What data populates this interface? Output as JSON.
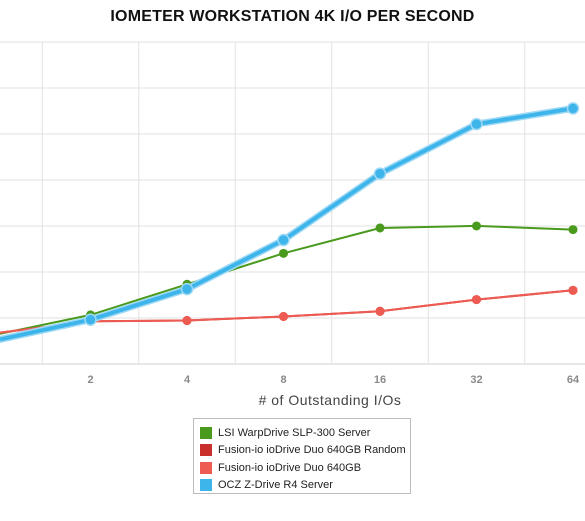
{
  "chart_data": {
    "type": "line",
    "title": "IOMETER WORKSTATION 4K I/O PER SECOND",
    "xlabel": "# of Outstanding I/Os",
    "ylabel": "",
    "x_scale": "log2",
    "x": [
      1,
      2,
      4,
      8,
      16,
      32,
      64
    ],
    "x_tick_labels": [
      "",
      "2",
      "4",
      "8",
      "16",
      "32",
      "64"
    ],
    "ylim": [
      0,
      8
    ],
    "grid": true,
    "legend_position": "bottom",
    "series": [
      {
        "name": "LSI WarpDrive SLP-300 Server",
        "color": "#4a9a1e",
        "values": [
          0.72,
          1.22,
          1.98,
          2.75,
          3.38,
          3.43,
          3.34
        ]
      },
      {
        "name": "Fusion-io ioDrive Duo 640GB Random",
        "color": "#c8302b",
        "values": [
          0.76,
          1.06,
          1.08,
          1.18,
          1.31,
          1.6,
          1.83
        ]
      },
      {
        "name": "Fusion-io ioDrive Duo 640GB",
        "color": "#ee5b52",
        "values": [
          0.76,
          1.06,
          1.08,
          1.18,
          1.31,
          1.6,
          1.83
        ]
      },
      {
        "name": "OCZ Z-Drive R4 Server",
        "color": "#3db5ea",
        "values": [
          0.58,
          1.1,
          1.86,
          3.08,
          4.73,
          5.96,
          6.35
        ]
      }
    ]
  }
}
